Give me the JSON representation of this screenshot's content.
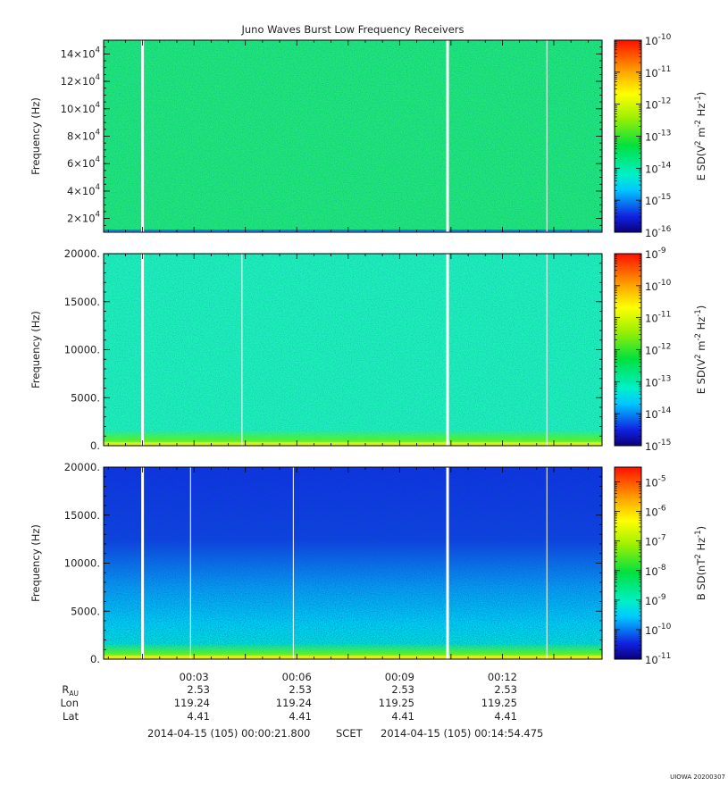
{
  "title": "Juno Waves Burst Low Frequency Receivers",
  "footer": {
    "time_range_start": "2014-04-15 (105) 00:00:21.800",
    "scet": "SCET",
    "time_range_end": "2014-04-15 (105) 00:14:54.475",
    "stamp": "UIOWA 20200307"
  },
  "ephemeris": {
    "rows": [
      {
        "label": "R",
        "sub": "AU",
        "values": [
          "2.53",
          "2.53",
          "2.53",
          "2.53"
        ]
      },
      {
        "label": "Lon",
        "sub": "",
        "values": [
          "119.24",
          "119.24",
          "119.25",
          "119.25"
        ]
      },
      {
        "label": "Lat",
        "sub": "",
        "values": [
          "4.41",
          "4.41",
          "4.41",
          "4.41"
        ]
      }
    ]
  },
  "chart_data": [
    {
      "type": "heatmap",
      "ylabel": "Frequency (Hz)",
      "ylim": [
        10000,
        150000
      ],
      "yticks": [
        {
          "value": 20000,
          "mant": "2×10",
          "exp": "4"
        },
        {
          "value": 40000,
          "mant": "4×10",
          "exp": "4"
        },
        {
          "value": 60000,
          "mant": "6×10",
          "exp": "4"
        },
        {
          "value": 80000,
          "mant": "8×10",
          "exp": "4"
        },
        {
          "value": 100000,
          "mant": "10×10",
          "exp": "4"
        },
        {
          "value": 120000,
          "mant": "12×10",
          "exp": "4"
        },
        {
          "value": 140000,
          "mant": "14×10",
          "exp": "4"
        }
      ],
      "xlim_minutes": [
        0.363,
        14.908
      ],
      "data_gaps_minutes": [
        1.5,
        10.4,
        13.3
      ],
      "background_color": "#1fe678",
      "colorbar": {
        "label_prefix": "E SD(V",
        "label_parts": [
          "E SD(V",
          "2",
          " m",
          "-2",
          " Hz",
          "-1",
          ")"
        ],
        "log_range": [
          -16,
          -10
        ],
        "ticks": [
          "-16",
          "-15",
          "-14",
          "-13",
          "-12",
          "-11",
          "-10"
        ]
      }
    },
    {
      "type": "heatmap",
      "ylabel": "Frequency (Hz)",
      "ylim": [
        0,
        20000
      ],
      "yticks": [
        {
          "value": 0,
          "label": "0."
        },
        {
          "value": 5000,
          "label": "5000."
        },
        {
          "value": 10000,
          "label": "10000."
        },
        {
          "value": 15000,
          "label": "15000."
        },
        {
          "value": 20000,
          "label": "20000."
        }
      ],
      "xlim_minutes": [
        0.363,
        14.908
      ],
      "data_gaps_minutes": [
        1.5,
        4.4,
        10.4,
        13.3
      ],
      "background_color": "#1ef0b8",
      "colorbar": {
        "label_parts": [
          "E SD(V",
          "2",
          " m",
          "-2",
          " Hz",
          "-1",
          ")"
        ],
        "log_range": [
          -15,
          -9
        ],
        "ticks": [
          "-15",
          "-14",
          "-13",
          "-12",
          "-11",
          "-10",
          "-9"
        ]
      }
    },
    {
      "type": "heatmap",
      "ylabel": "Frequency (Hz)",
      "ylim": [
        0,
        20000
      ],
      "yticks": [
        {
          "value": 0,
          "label": "0."
        },
        {
          "value": 5000,
          "label": "5000."
        },
        {
          "value": 10000,
          "label": "10000."
        },
        {
          "value": 15000,
          "label": "15000."
        },
        {
          "value": 20000,
          "label": "20000."
        }
      ],
      "xlim_minutes": [
        0.363,
        14.908
      ],
      "xticks": [
        {
          "value": 3,
          "label": "00:03"
        },
        {
          "value": 6,
          "label": "00:06"
        },
        {
          "value": 9,
          "label": "00:09"
        },
        {
          "value": 12,
          "label": "00:12"
        }
      ],
      "data_gaps_minutes": [
        1.5,
        2.9,
        5.9,
        10.4,
        13.3
      ],
      "background_color": "#1030e0",
      "colorbar": {
        "label_parts": [
          "B SD(nT",
          "2",
          " Hz",
          "-1",
          ")"
        ],
        "log_range": [
          -11,
          -4.5
        ],
        "ticks": [
          "-11",
          "-10",
          "-9",
          "-8",
          "-7",
          "-6",
          "-5"
        ]
      }
    }
  ]
}
